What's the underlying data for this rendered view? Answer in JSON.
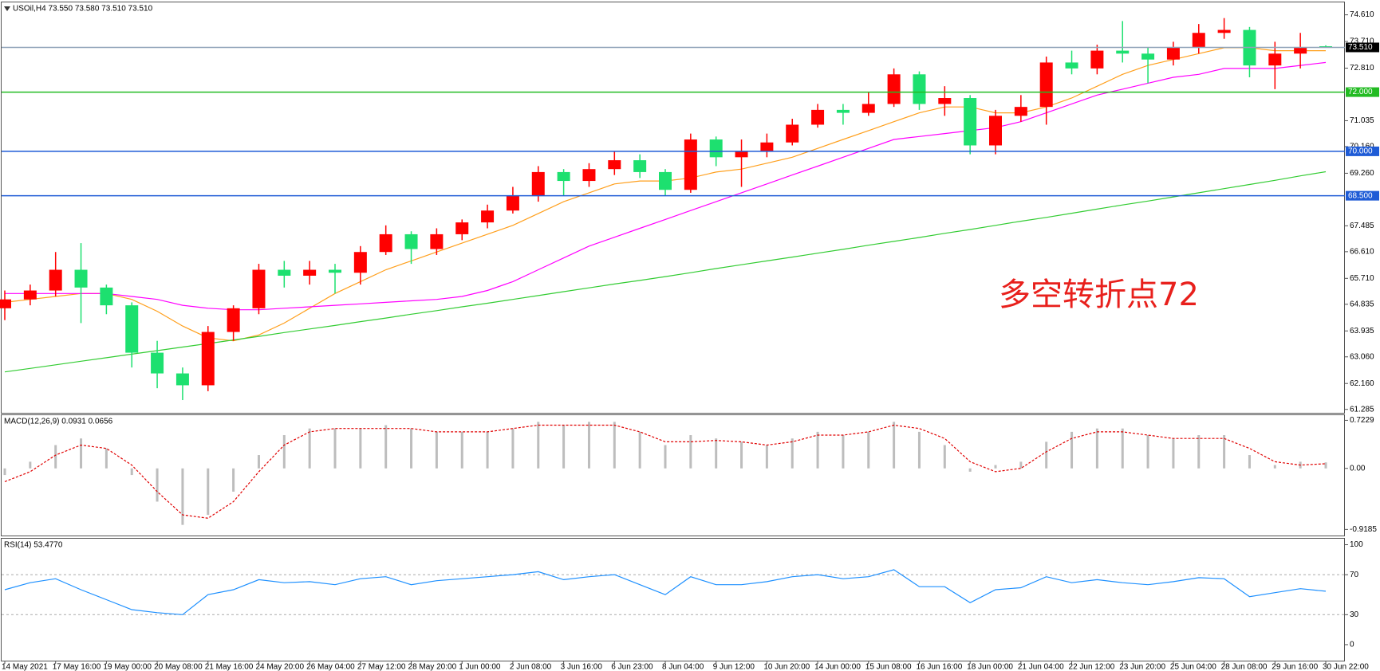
{
  "chart_data": [
    {
      "type": "candlestick",
      "title": "USOil,H4  73.550 73.580 73.510 73.510",
      "open": [
        64.7,
        65.0,
        65.3,
        66.0,
        65.4,
        64.8,
        63.2,
        62.5,
        62.1,
        63.9,
        64.7,
        66.0,
        65.8,
        66.0,
        65.9,
        66.6,
        67.2,
        66.7,
        67.2,
        67.6,
        68.0,
        68.5,
        69.3,
        69.0,
        69.4,
        69.7,
        69.3,
        68.7,
        70.4,
        69.8,
        70.0,
        70.3,
        70.9,
        71.4,
        71.3,
        71.6,
        72.6,
        71.6,
        71.8,
        70.2,
        71.2,
        71.5,
        73.0,
        72.8,
        73.4,
        73.3,
        73.1,
        73.5,
        74.0,
        74.1,
        72.9,
        73.3,
        73.55
      ],
      "high": [
        65.3,
        65.5,
        66.6,
        66.9,
        65.5,
        64.9,
        63.6,
        62.7,
        64.1,
        64.8,
        66.2,
        66.3,
        66.3,
        66.2,
        66.8,
        67.5,
        67.3,
        67.4,
        67.7,
        68.2,
        68.8,
        69.5,
        69.4,
        69.6,
        70.0,
        69.9,
        69.4,
        70.6,
        70.5,
        70.4,
        70.6,
        71.1,
        71.6,
        71.6,
        72.0,
        72.8,
        72.7,
        72.2,
        71.9,
        71.4,
        71.9,
        73.2,
        73.4,
        73.6,
        74.4,
        73.5,
        73.7,
        74.3,
        74.5,
        74.2,
        73.7,
        74.0,
        73.58
      ],
      "low": [
        64.3,
        64.8,
        65.1,
        64.2,
        64.5,
        62.7,
        62.0,
        61.6,
        61.9,
        63.6,
        64.5,
        65.4,
        65.5,
        65.2,
        65.5,
        66.5,
        66.2,
        66.5,
        67.0,
        67.4,
        67.9,
        68.3,
        68.5,
        68.8,
        69.2,
        69.1,
        68.5,
        68.6,
        69.5,
        68.8,
        69.8,
        70.2,
        70.8,
        70.9,
        71.2,
        71.5,
        71.4,
        71.2,
        69.9,
        69.9,
        71.0,
        70.9,
        72.6,
        72.6,
        73.0,
        72.3,
        72.9,
        73.3,
        73.8,
        72.5,
        72.1,
        72.8,
        73.51
      ],
      "close": [
        65.0,
        65.3,
        66.0,
        65.4,
        64.8,
        63.2,
        62.5,
        62.1,
        63.9,
        64.7,
        66.0,
        65.8,
        66.0,
        65.9,
        66.6,
        67.2,
        66.7,
        67.2,
        67.6,
        68.0,
        68.5,
        69.3,
        69.0,
        69.4,
        69.7,
        69.3,
        68.7,
        70.4,
        69.8,
        70.0,
        70.3,
        70.9,
        71.4,
        71.3,
        71.6,
        72.6,
        71.6,
        71.8,
        70.2,
        71.2,
        71.5,
        73.0,
        72.8,
        73.4,
        73.3,
        73.1,
        73.5,
        74.0,
        74.1,
        72.9,
        73.3,
        73.5,
        73.51
      ],
      "up_color": "#ff0000",
      "down_color": "#1de06f",
      "series": [
        {
          "color": "#ff9f1c",
          "values": [
            64.9,
            65.0,
            65.1,
            65.2,
            65.2,
            65.0,
            64.6,
            64.1,
            63.7,
            63.6,
            63.8,
            64.2,
            64.7,
            65.2,
            65.6,
            66.0,
            66.3,
            66.6,
            66.9,
            67.2,
            67.5,
            67.9,
            68.3,
            68.6,
            68.9,
            69.0,
            69.0,
            69.1,
            69.3,
            69.4,
            69.6,
            69.8,
            70.1,
            70.4,
            70.7,
            71.0,
            71.3,
            71.5,
            71.5,
            71.3,
            71.3,
            71.5,
            71.8,
            72.2,
            72.6,
            72.9,
            73.1,
            73.3,
            73.5,
            73.5,
            73.4,
            73.4,
            73.4
          ]
        },
        {
          "color": "#ff00ff",
          "values": [
            65.2,
            65.2,
            65.2,
            65.2,
            65.2,
            65.1,
            65.0,
            64.8,
            64.7,
            64.65,
            64.65,
            64.7,
            64.75,
            64.8,
            64.85,
            64.9,
            64.95,
            65.0,
            65.1,
            65.3,
            65.6,
            66.0,
            66.4,
            66.8,
            67.1,
            67.4,
            67.7,
            68.0,
            68.3,
            68.6,
            68.9,
            69.2,
            69.5,
            69.8,
            70.1,
            70.4,
            70.5,
            70.6,
            70.7,
            70.8,
            71.0,
            71.3,
            71.6,
            71.9,
            72.1,
            72.3,
            72.5,
            72.6,
            72.8,
            72.8,
            72.8,
            72.9,
            73.0
          ]
        },
        {
          "color": "#33cc33",
          "values": [
            62.55,
            62.67,
            62.79,
            62.91,
            63.03,
            63.15,
            63.27,
            63.39,
            63.51,
            63.63,
            63.75,
            63.88,
            64.0,
            64.12,
            64.25,
            64.37,
            64.5,
            64.62,
            64.75,
            64.87,
            65.0,
            65.13,
            65.26,
            65.39,
            65.52,
            65.64,
            65.77,
            65.9,
            66.04,
            66.17,
            66.3,
            66.43,
            66.56,
            66.69,
            66.83,
            66.96,
            67.09,
            67.23,
            67.36,
            67.5,
            67.64,
            67.77,
            67.91,
            68.05,
            68.19,
            68.32,
            68.46,
            68.6,
            68.74,
            68.88,
            69.02,
            69.17,
            69.31
          ]
        }
      ],
      "hlines": [
        {
          "value": 73.51,
          "label": "73.510",
          "color": "#8fa3b8",
          "label_bg": "#000000"
        },
        {
          "value": 72,
          "label": "72.000",
          "color": "#22bb22",
          "label_bg": "#22bb22"
        },
        {
          "value": 70,
          "label": "70.000",
          "color": "#1e5bd6",
          "label_bg": "#1e5bd6"
        },
        {
          "value": 68.5,
          "label": "68.500",
          "color": "#1e5bd6",
          "label_bg": "#1e5bd6"
        }
      ],
      "annotation": "多空转折点72",
      "annotation_color": "#e8201c",
      "ylim": [
        61.17,
        75.03
      ],
      "yticks": [
        {
          "value": 74.61,
          "label": "74.610"
        },
        {
          "value": 73.71,
          "label": "73.710"
        },
        {
          "value": 72.81,
          "label": "72.810"
        },
        71.035,
        {
          "value": 70.16,
          "label": "70.160"
        },
        {
          "value": 69.26,
          "label": "69.260"
        },
        67.485,
        {
          "value": 66.61,
          "label": "66.610"
        },
        {
          "value": 65.71,
          "label": "65.710"
        },
        64.835,
        63.935,
        {
          "value": 63.06,
          "label": "63.060"
        },
        {
          "value": 62.16,
          "label": "62.160"
        },
        61.285
      ]
    },
    {
      "type": "macd",
      "title": "MACD(12,26,9) 0.0931 0.0656",
      "color": "#bdbdbd",
      "values": [
        -0.1,
        0.1,
        0.35,
        0.45,
        0.3,
        -0.1,
        -0.5,
        -0.85,
        -0.7,
        -0.35,
        0.2,
        0.5,
        0.6,
        0.6,
        0.6,
        0.65,
        0.6,
        0.55,
        0.55,
        0.55,
        0.6,
        0.7,
        0.65,
        0.7,
        0.7,
        0.55,
        0.35,
        0.5,
        0.45,
        0.4,
        0.35,
        0.45,
        0.55,
        0.5,
        0.55,
        0.7,
        0.55,
        0.35,
        -0.05,
        0.05,
        0.1,
        0.4,
        0.55,
        0.6,
        0.6,
        0.5,
        0.45,
        0.5,
        0.5,
        0.2,
        0.05,
        0.1,
        0.09
      ],
      "series": [
        {
          "color": "#e00000",
          "dashed": true,
          "values": [
            -0.2,
            -0.05,
            0.2,
            0.35,
            0.3,
            0.05,
            -0.35,
            -0.7,
            -0.75,
            -0.5,
            -0.05,
            0.35,
            0.55,
            0.6,
            0.6,
            0.6,
            0.6,
            0.55,
            0.55,
            0.55,
            0.6,
            0.65,
            0.65,
            0.65,
            0.65,
            0.55,
            0.4,
            0.4,
            0.42,
            0.4,
            0.35,
            0.4,
            0.5,
            0.5,
            0.55,
            0.65,
            0.6,
            0.45,
            0.1,
            -0.05,
            0.0,
            0.25,
            0.45,
            0.55,
            0.55,
            0.5,
            0.45,
            0.45,
            0.45,
            0.3,
            0.1,
            0.05,
            0.07
          ]
        }
      ],
      "ylim": [
        -1.01,
        0.8
      ],
      "yticks": [
        0.7229,
        {
          "value": 0,
          "label": "0.00"
        },
        -0.9185
      ]
    },
    {
      "type": "line",
      "title": "RSI(14) 53.4770",
      "grid": true,
      "series": [
        {
          "color": "#1e90ff",
          "values": [
            55,
            62,
            66,
            55,
            45,
            35,
            32,
            30,
            50,
            55,
            65,
            62,
            63,
            60,
            66,
            68,
            60,
            64,
            66,
            68,
            70,
            73,
            65,
            68,
            70,
            60,
            50,
            68,
            60,
            60,
            63,
            68,
            70,
            66,
            68,
            75,
            58,
            58,
            42,
            55,
            57,
            68,
            62,
            65,
            62,
            60,
            63,
            67,
            66,
            48,
            52,
            56,
            53.477
          ]
        }
      ],
      "ylim": [
        -16,
        106
      ],
      "yticks": [
        100,
        70,
        30,
        0
      ],
      "x_labels": [
        "14 May 2021",
        "17 May 16:00",
        "19 May 00:00",
        "20 May 08:00",
        "21 May 16:00",
        "24 May 20:00",
        "26 May 04:00",
        "27 May 12:00",
        "28 May 20:00",
        "1 Jun 00:00",
        "2 Jun 08:00",
        "3 Jun 16:00",
        "6 Jun 23:00",
        "8 Jun 04:00",
        "9 Jun 12:00",
        "10 Jun 20:00",
        "14 Jun 00:00",
        "15 Jun 08:00",
        "16 Jun 16:00",
        "18 Jun 00:00",
        "21 Jun 04:00",
        "22 Jun 12:00",
        "23 Jun 20:00",
        "25 Jun 04:00",
        "28 Jun 08:00",
        "29 Jun 16:00",
        "30 Jun 22:00"
      ]
    }
  ]
}
